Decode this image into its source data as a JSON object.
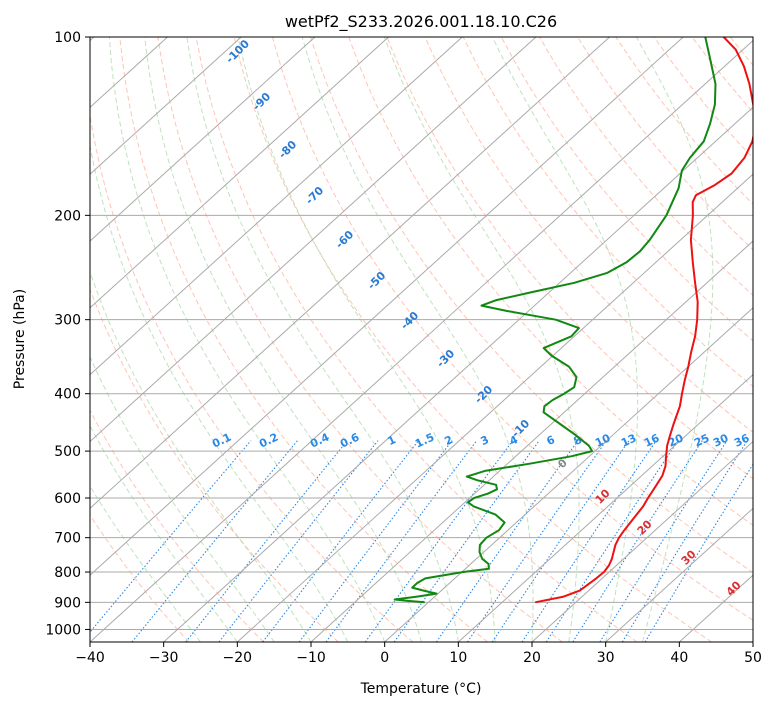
{
  "chart_data": {
    "type": "line",
    "subtype": "skew-t log-p diagram",
    "title": "wetPf2_S233.2026.001.18.10.C26",
    "xlabel": "Temperature (°C)",
    "ylabel": "Pressure (hPa)",
    "xlim": [
      -40,
      50
    ],
    "ylim": [
      1050,
      100
    ],
    "y_scale": "log",
    "x_ticks": [
      -40,
      -30,
      -20,
      -10,
      0,
      10,
      20,
      30,
      40,
      50
    ],
    "x_tick_labels": [
      "−40",
      "−30",
      "−20",
      "−10",
      "0",
      "10",
      "20",
      "30",
      "40",
      "50"
    ],
    "y_ticks": [
      100,
      200,
      300,
      400,
      500,
      600,
      700,
      800,
      900,
      1000
    ],
    "y_tick_labels": [
      "100",
      "200",
      "300",
      "400",
      "500",
      "600",
      "700",
      "800",
      "900",
      "1000"
    ],
    "grid": true,
    "colors": {
      "temperature": "#ee1111",
      "dewpoint": "#118811",
      "isotherm": "#aaaaaa",
      "dry_adiabat": "#ff9c80",
      "moist_adiabat": "#a8d8a8",
      "mixing_ratio": "#2a8ae6",
      "label_blue": "#2a7ad0",
      "label_red": "#d83030",
      "label_gray": "#888888"
    },
    "series": [
      {
        "key": "temperature",
        "points": [
          {
            "p": 900,
            "t": 14.5
          },
          {
            "p": 880,
            "t": 17.5
          },
          {
            "p": 860,
            "t": 18.8
          },
          {
            "p": 840,
            "t": 19.0
          },
          {
            "p": 820,
            "t": 19.2
          },
          {
            "p": 800,
            "t": 19.3
          },
          {
            "p": 780,
            "t": 19.0
          },
          {
            "p": 760,
            "t": 18.4
          },
          {
            "p": 740,
            "t": 17.6
          },
          {
            "p": 720,
            "t": 16.8
          },
          {
            "p": 700,
            "t": 16.2
          },
          {
            "p": 680,
            "t": 15.8
          },
          {
            "p": 650,
            "t": 15.3
          },
          {
            "p": 620,
            "t": 14.8
          },
          {
            "p": 600,
            "t": 14.2
          },
          {
            "p": 570,
            "t": 13.4
          },
          {
            "p": 550,
            "t": 12.8
          },
          {
            "p": 530,
            "t": 11.8
          },
          {
            "p": 510,
            "t": 10.4
          },
          {
            "p": 490,
            "t": 9.0
          },
          {
            "p": 470,
            "t": 7.8
          },
          {
            "p": 450,
            "t": 6.6
          },
          {
            "p": 420,
            "t": 4.8
          },
          {
            "p": 400,
            "t": 3.2
          },
          {
            "p": 380,
            "t": 1.6
          },
          {
            "p": 360,
            "t": 0.0
          },
          {
            "p": 340,
            "t": -1.8
          },
          {
            "p": 320,
            "t": -3.6
          },
          {
            "p": 300,
            "t": -5.8
          },
          {
            "p": 280,
            "t": -8.4
          },
          {
            "p": 260,
            "t": -11.6
          },
          {
            "p": 240,
            "t": -15.0
          },
          {
            "p": 220,
            "t": -18.6
          },
          {
            "p": 200,
            "t": -22.0
          },
          {
            "p": 190,
            "t": -24.0
          },
          {
            "p": 185,
            "t": -24.6
          },
          {
            "p": 178,
            "t": -23.6
          },
          {
            "p": 170,
            "t": -23.0
          },
          {
            "p": 160,
            "t": -23.6
          },
          {
            "p": 150,
            "t": -25.0
          },
          {
            "p": 140,
            "t": -27.2
          },
          {
            "p": 130,
            "t": -30.4
          },
          {
            "p": 120,
            "t": -34.0
          },
          {
            "p": 112,
            "t": -37.4
          },
          {
            "p": 105,
            "t": -41.0
          },
          {
            "p": 100,
            "t": -44.5
          }
        ]
      },
      {
        "key": "dewpoint",
        "points": [
          {
            "p": 900,
            "t": -0.5
          },
          {
            "p": 895,
            "t": -3.0
          },
          {
            "p": 890,
            "t": -5.0
          },
          {
            "p": 880,
            "t": -2.4
          },
          {
            "p": 870,
            "t": -0.2
          },
          {
            "p": 860,
            "t": -2.4
          },
          {
            "p": 850,
            "t": -4.4
          },
          {
            "p": 835,
            "t": -4.4
          },
          {
            "p": 820,
            "t": -4.0
          },
          {
            "p": 800,
            "t": 0.2
          },
          {
            "p": 790,
            "t": 3.2
          },
          {
            "p": 775,
            "t": 2.4
          },
          {
            "p": 760,
            "t": 0.8
          },
          {
            "p": 740,
            "t": -0.6
          },
          {
            "p": 720,
            "t": -1.6
          },
          {
            "p": 700,
            "t": -1.8
          },
          {
            "p": 680,
            "t": -1.2
          },
          {
            "p": 660,
            "t": -1.6
          },
          {
            "p": 640,
            "t": -4.0
          },
          {
            "p": 620,
            "t": -8.2
          },
          {
            "p": 610,
            "t": -9.6
          },
          {
            "p": 600,
            "t": -9.4
          },
          {
            "p": 590,
            "t": -8.2
          },
          {
            "p": 580,
            "t": -7.6
          },
          {
            "p": 570,
            "t": -8.4
          },
          {
            "p": 560,
            "t": -11.6
          },
          {
            "p": 552,
            "t": -13.6
          },
          {
            "p": 540,
            "t": -12.0
          },
          {
            "p": 525,
            "t": -7.0
          },
          {
            "p": 510,
            "t": -2.4
          },
          {
            "p": 500,
            "t": -0.4
          },
          {
            "p": 490,
            "t": -1.6
          },
          {
            "p": 470,
            "t": -5.0
          },
          {
            "p": 450,
            "t": -8.8
          },
          {
            "p": 430,
            "t": -12.8
          },
          {
            "p": 420,
            "t": -13.6
          },
          {
            "p": 410,
            "t": -13.4
          },
          {
            "p": 400,
            "t": -12.8
          },
          {
            "p": 390,
            "t": -12.4
          },
          {
            "p": 375,
            "t": -13.6
          },
          {
            "p": 360,
            "t": -16.2
          },
          {
            "p": 345,
            "t": -20.2
          },
          {
            "p": 335,
            "t": -22.4
          },
          {
            "p": 320,
            "t": -20.4
          },
          {
            "p": 310,
            "t": -20.6
          },
          {
            "p": 300,
            "t": -25.0
          },
          {
            "p": 290,
            "t": -33.0
          },
          {
            "p": 284,
            "t": -37.2
          },
          {
            "p": 278,
            "t": -36.0
          },
          {
            "p": 270,
            "t": -32.6
          },
          {
            "p": 260,
            "t": -28.0
          },
          {
            "p": 250,
            "t": -25.0
          },
          {
            "p": 240,
            "t": -24.0
          },
          {
            "p": 230,
            "t": -23.8
          },
          {
            "p": 220,
            "t": -24.2
          },
          {
            "p": 200,
            "t": -25.6
          },
          {
            "p": 180,
            "t": -28.0
          },
          {
            "p": 168,
            "t": -30.2
          },
          {
            "p": 160,
            "t": -31.0
          },
          {
            "p": 150,
            "t": -31.6
          },
          {
            "p": 140,
            "t": -33.4
          },
          {
            "p": 130,
            "t": -35.6
          },
          {
            "p": 120,
            "t": -38.6
          },
          {
            "p": 110,
            "t": -42.6
          },
          {
            "p": 100,
            "t": -47.0
          }
        ]
      }
    ],
    "moist_adiabat_labels": [
      "-100",
      "-90",
      "-80",
      "-70",
      "-60",
      "-50",
      "-40",
      "-30",
      "-20",
      "-10",
      "0",
      "10",
      "20",
      "30",
      "40"
    ],
    "mixing_ratio_labels": [
      "0.1",
      "0.2",
      "0.4",
      "0.6",
      "1",
      "1.5",
      "2",
      "3",
      "4",
      "6",
      "8",
      "10",
      "13",
      "16",
      "20",
      "25",
      "30",
      "36"
    ]
  }
}
